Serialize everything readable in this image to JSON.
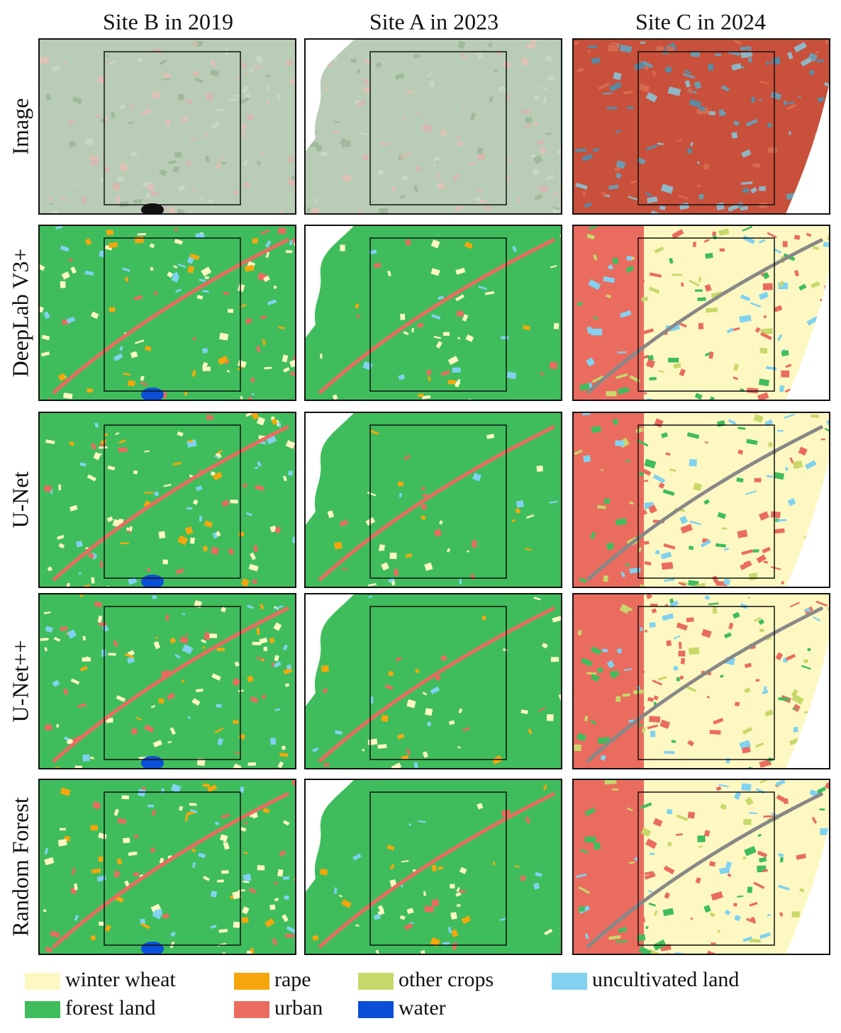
{
  "columns": [
    "Site B in 2019",
    "Site A in 2023",
    "Site C in 2024"
  ],
  "rows": [
    "Image",
    "DeepLab V3+",
    "U-Net",
    "U-Net++",
    "Random Forest"
  ],
  "legend": [
    {
      "label": "winter wheat",
      "color": "#fdf8c2"
    },
    {
      "label": "rape",
      "color": "#f5a60c"
    },
    {
      "label": "other crops",
      "color": "#c8d86a"
    },
    {
      "label": "uncultivated land",
      "color": "#80d2f0"
    },
    {
      "label": "forest land",
      "color": "#3fbd5c"
    },
    {
      "label": "urban",
      "color": "#ea6c5f"
    },
    {
      "label": "water",
      "color": "#0b4fd8"
    }
  ]
}
